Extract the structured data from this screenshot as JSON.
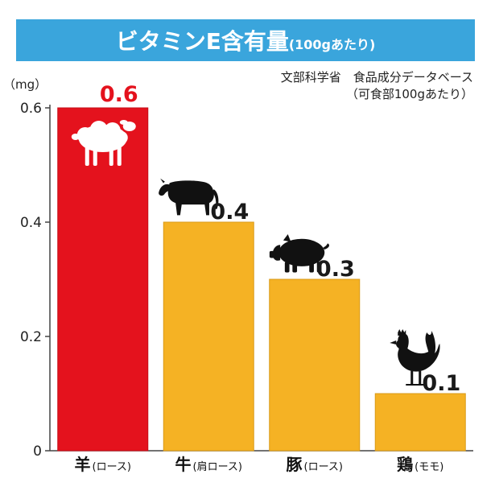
{
  "chart_data": {
    "type": "bar",
    "title": "ビタミンE含有量",
    "subtitle": "(100gあたり)",
    "source_line1": "文部科学省　食品成分データベース",
    "source_line2": "（可食部100gあたり）",
    "ylabel": "（mg）",
    "ylim": [
      0,
      0.6
    ],
    "yticks": [
      "0",
      "0.2",
      "0.4",
      "0.6"
    ],
    "categories": [
      {
        "name": "羊",
        "sub": "(ロース)"
      },
      {
        "name": "牛",
        "sub": "(肩ロース)"
      },
      {
        "name": "豚",
        "sub": "(ロース)"
      },
      {
        "name": "鶏",
        "sub": "(モモ)"
      }
    ],
    "values": [
      0.6,
      0.4,
      0.3,
      0.1
    ],
    "value_labels": [
      "0.6",
      "0.4",
      "0.3",
      "0.1"
    ],
    "animals": [
      "sheep-icon",
      "cow-icon",
      "pig-icon",
      "rooster-icon"
    ],
    "colors": {
      "highlight": "#e4121d",
      "bar": "#f5b224",
      "highlight_label": "#e4121d",
      "label": "#1a1a1a",
      "title_band": "#3aa5dc"
    },
    "grid": false
  }
}
